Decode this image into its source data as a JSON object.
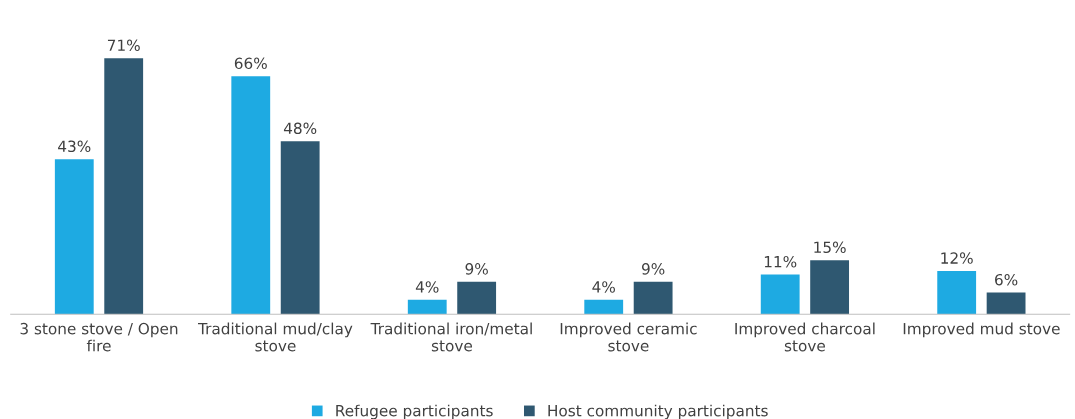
{
  "chart_data": {
    "type": "bar",
    "categories": [
      "3 stone stove / Open\nfire",
      "Traditional mud/clay\nstove",
      "Traditional iron/metal\nstove",
      "Improved ceramic\nstove",
      "Improved charcoal\nstove",
      "Improved mud stove"
    ],
    "series": [
      {
        "name": "Refugee participants",
        "color": "#1eaae2",
        "values": [
          43,
          66,
          4,
          4,
          11,
          12
        ],
        "value_labels": [
          "43%",
          "66%",
          "4%",
          "4%",
          "11%",
          "12%"
        ]
      },
      {
        "name": "Host community participants",
        "color": "#2f5871",
        "values": [
          71,
          48,
          9,
          9,
          15,
          6
        ],
        "value_labels": [
          "71%",
          "48%",
          "9%",
          "9%",
          "15%",
          "6%"
        ]
      }
    ],
    "legend": "bottom",
    "grid": false
  }
}
